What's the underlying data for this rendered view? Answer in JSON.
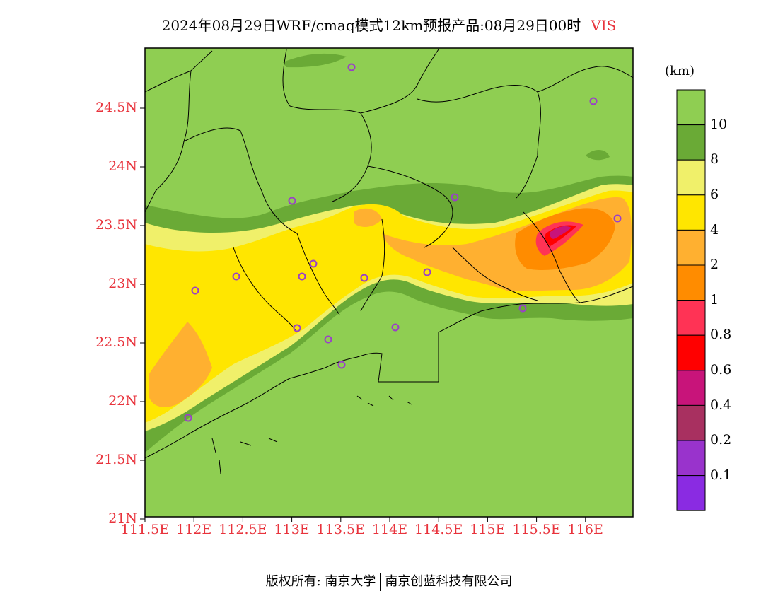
{
  "title": {
    "main": "2024年08月29日WRF/cmaq模式12km预报产品:08月29日00时",
    "variable": "VIS"
  },
  "axes": {
    "lat_labels": [
      "24.5N",
      "24N",
      "23.5N",
      "23N",
      "22.5N",
      "22N",
      "21.5N",
      "21N"
    ],
    "lon_labels": [
      "111.5E",
      "112E",
      "112.5E",
      "113E",
      "113.5E",
      "114E",
      "114.5E",
      "115E",
      "115.5E",
      "116E"
    ]
  },
  "colorbar": {
    "unit": "(km)",
    "labels": [
      "10",
      "8",
      "6",
      "4",
      "2",
      "1",
      "0.8",
      "0.6",
      "0.4",
      "0.2",
      "0.1"
    ],
    "colors": [
      "#8fce52",
      "#6aaa36",
      "#f0f06a",
      "#ffe600",
      "#ffb030",
      "#ff8c00",
      "#ff3355",
      "#ff0000",
      "#c8147a",
      "#a83060",
      "#9933cc",
      "#8a2be2"
    ]
  },
  "map": {
    "background_color": "#8fce52",
    "station_marker": "circle-icon"
  },
  "footer": {
    "left": "版权所有: 南京大学",
    "right": "南京创蓝科技有限公司"
  }
}
